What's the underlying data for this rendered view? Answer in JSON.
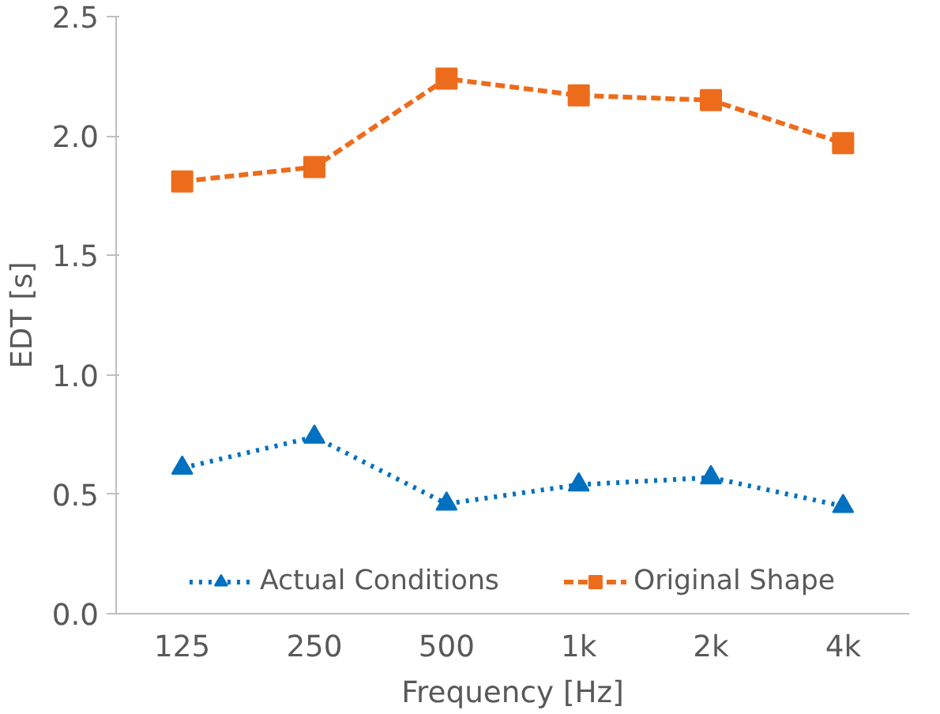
{
  "chart_data": {
    "type": "line",
    "xlabel": "Frequency [Hz]",
    "ylabel": "EDT [s]",
    "categories": [
      "125",
      "250",
      "500",
      "1k",
      "2k",
      "4k"
    ],
    "series": [
      {
        "name": "Actual Conditions",
        "color": "#0070c0",
        "values": [
          0.61,
          0.74,
          0.46,
          0.54,
          0.57,
          0.45
        ],
        "marker": "triangle",
        "line_style": "dotted"
      },
      {
        "name": "Original Shape",
        "color": "#ed6c1c",
        "values": [
          1.81,
          1.87,
          2.24,
          2.17,
          2.15,
          1.97
        ],
        "marker": "square",
        "line_style": "dashed"
      }
    ],
    "ylim": [
      0,
      2.5
    ],
    "yticks": [
      {
        "value": 0,
        "label": "0.0"
      },
      {
        "value": 0.5,
        "label": "0.5"
      },
      {
        "value": 1,
        "label": "1.0"
      },
      {
        "value": 1.5,
        "label": "1.5"
      },
      {
        "value": 2,
        "label": "2.0"
      },
      {
        "value": 2.5,
        "label": "2.5"
      }
    ],
    "grid": false,
    "legend": "bottom"
  }
}
